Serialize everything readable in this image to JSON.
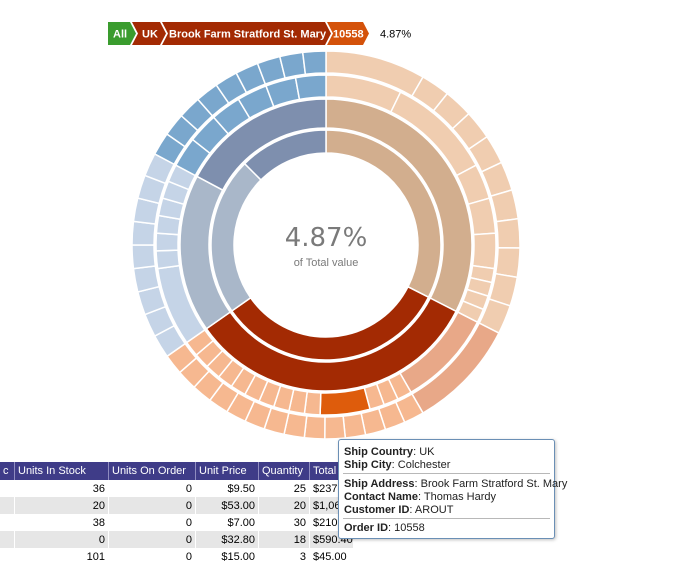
{
  "breadcrumb": {
    "items": [
      "All",
      "UK",
      "Brook Farm Stratford St. Mary",
      "10558"
    ],
    "percent": "4.87%",
    "colors": [
      "#3a9c2e",
      "#a32a03",
      "#a32a03",
      "#d4520a"
    ]
  },
  "center": {
    "value": "4.87%",
    "label": "of Total value"
  },
  "tooltip": {
    "country_label": "Ship Country",
    "country": "UK",
    "city_label": "Ship City",
    "city": "Colchester",
    "address_label": "Ship Address",
    "address": "Brook Farm Stratford St. Mary",
    "contact_label": "Contact Name",
    "contact": "Thomas Hardy",
    "customer_label": "Customer ID",
    "customer": "AROUT",
    "order_label": "Order ID",
    "order": "10558"
  },
  "grid": {
    "columns": [
      "c",
      "Units In Stock",
      "Units On Order",
      "Unit Price",
      "Quantity",
      "Total"
    ],
    "rows": [
      [
        "",
        "36",
        "0",
        "$9.50",
        "25",
        "$237."
      ],
      [
        "",
        "20",
        "0",
        "$53.00",
        "20",
        "$1,060."
      ],
      [
        "",
        "38",
        "0",
        "$7.00",
        "30",
        "$210."
      ],
      [
        "",
        "0",
        "0",
        "$32.80",
        "18",
        "$590.40"
      ],
      [
        "",
        "101",
        "0",
        "$15.00",
        "3",
        "$45.00"
      ]
    ]
  },
  "colors": {
    "highlight_dark": "#a32a03",
    "highlight_light": "#e8a888",
    "selected_order": "#de5c0c",
    "tan_inner": "#d2ae8e",
    "tan_outer": "#f0cdb0",
    "slate_inner": "#a9b7c9",
    "slate_dark": "#7e8fae",
    "blue_outer": "#c5d4e7",
    "blue_dark": "#7aa7cd",
    "orange_outer": "#f6b890",
    "grid_header": "#3f3c88"
  }
}
